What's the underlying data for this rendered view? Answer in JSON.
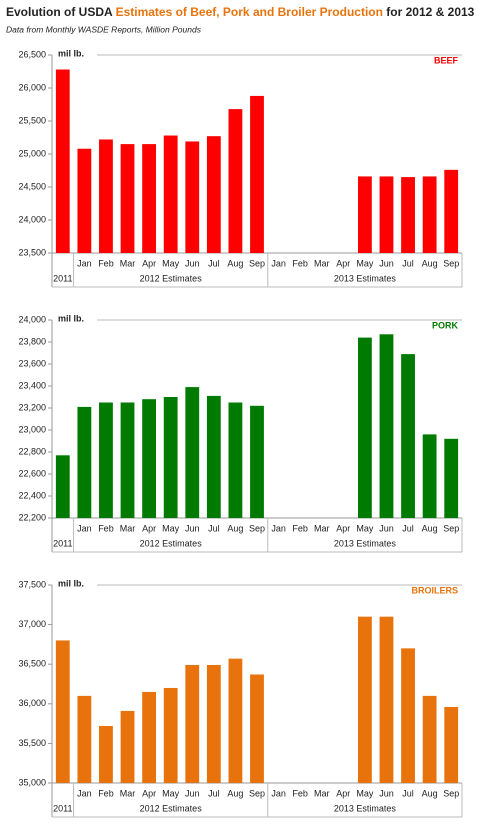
{
  "title": [
    "Evolution of USDA",
    "Estimates of Beef, Pork and Broiler Production",
    "for 2012 & 2013"
  ],
  "subtitle": "Data from Monthly WASDE Reports, Million Pounds",
  "chart_data": [
    {
      "type": "bar",
      "label": "BEEF",
      "unit": "mil lb.",
      "color": "#ff0000",
      "categories": [
        null,
        "Jan",
        "Feb",
        "Mar",
        "Apr",
        "May",
        "Jun",
        "Jul",
        "Aug",
        "Sep",
        "Jan",
        "Feb",
        "Mar",
        "Apr",
        "May",
        "Jun",
        "Jul",
        "Aug",
        "Sep"
      ],
      "groups": [
        "2011",
        "2012 Estimates",
        "2013 Estimates"
      ],
      "values": [
        26280,
        25080,
        25220,
        25150,
        25150,
        25280,
        25190,
        25270,
        25680,
        25880,
        null,
        null,
        null,
        null,
        24660,
        24660,
        24650,
        24660,
        24760
      ],
      "ylim": [
        23500,
        26500
      ],
      "yticks": [
        {
          "value": 23500,
          "label": "23,500"
        },
        {
          "value": 24000,
          "label": "24,000"
        },
        {
          "value": 24500,
          "label": "24,500"
        },
        {
          "value": 25000,
          "label": "25,000"
        },
        {
          "value": 25500,
          "label": "25,500"
        },
        {
          "value": 26000,
          "label": "26,000"
        },
        {
          "value": 26500,
          "label": "26,500"
        }
      ]
    },
    {
      "type": "bar",
      "label": "PORK",
      "unit": "mil lb.",
      "color": "#007a00",
      "categories": [
        null,
        "Jan",
        "Feb",
        "Mar",
        "Apr",
        "May",
        "Jun",
        "Jul",
        "Aug",
        "Sep",
        "Jan",
        "Feb",
        "Mar",
        "Apr",
        "May",
        "Jun",
        "Jul",
        "Aug",
        "Sep"
      ],
      "groups": [
        "2011",
        "2012 Estimates",
        "2013 Estimates"
      ],
      "values": [
        22770,
        23210,
        23250,
        23250,
        23280,
        23300,
        23390,
        23310,
        23250,
        23220,
        null,
        null,
        null,
        null,
        23840,
        23870,
        23690,
        22960,
        22920
      ],
      "ylim": [
        22200,
        24000
      ],
      "yticks": [
        {
          "value": 22200,
          "label": "22,200"
        },
        {
          "value": 22400,
          "label": "22,400"
        },
        {
          "value": 22600,
          "label": "22,600"
        },
        {
          "value": 22800,
          "label": "22,800"
        },
        {
          "value": 23000,
          "label": "23,000"
        },
        {
          "value": 23200,
          "label": "23,200"
        },
        {
          "value": 23400,
          "label": "23,400"
        },
        {
          "value": 23600,
          "label": "23,600"
        },
        {
          "value": 23800,
          "label": "23,800"
        },
        {
          "value": 24000,
          "label": "24,000"
        }
      ]
    },
    {
      "type": "bar",
      "label": "BROILERS",
      "unit": "mil lb.",
      "color": "#e8730c",
      "categories": [
        null,
        "Jan",
        "Feb",
        "Mar",
        "Apr",
        "May",
        "Jun",
        "Jul",
        "Aug",
        "Sep",
        "Jan",
        "Feb",
        "Mar",
        "Apr",
        "May",
        "Jun",
        "Jul",
        "Aug",
        "Sep"
      ],
      "groups": [
        "2011",
        "2012 Estimates",
        "2013 Estimates"
      ],
      "values": [
        36800,
        36100,
        35720,
        35910,
        36150,
        36200,
        36490,
        36490,
        36570,
        36370,
        null,
        null,
        null,
        null,
        37100,
        37100,
        36700,
        36100,
        35960
      ],
      "ylim": [
        35000,
        37500
      ],
      "yticks": [
        {
          "value": 35000,
          "label": "35,000"
        },
        {
          "value": 35500,
          "label": "35,500"
        },
        {
          "value": 36000,
          "label": "36,000"
        },
        {
          "value": 36500,
          "label": "36,500"
        },
        {
          "value": 37000,
          "label": "37,000"
        },
        {
          "value": 37500,
          "label": "37,500"
        }
      ]
    }
  ]
}
